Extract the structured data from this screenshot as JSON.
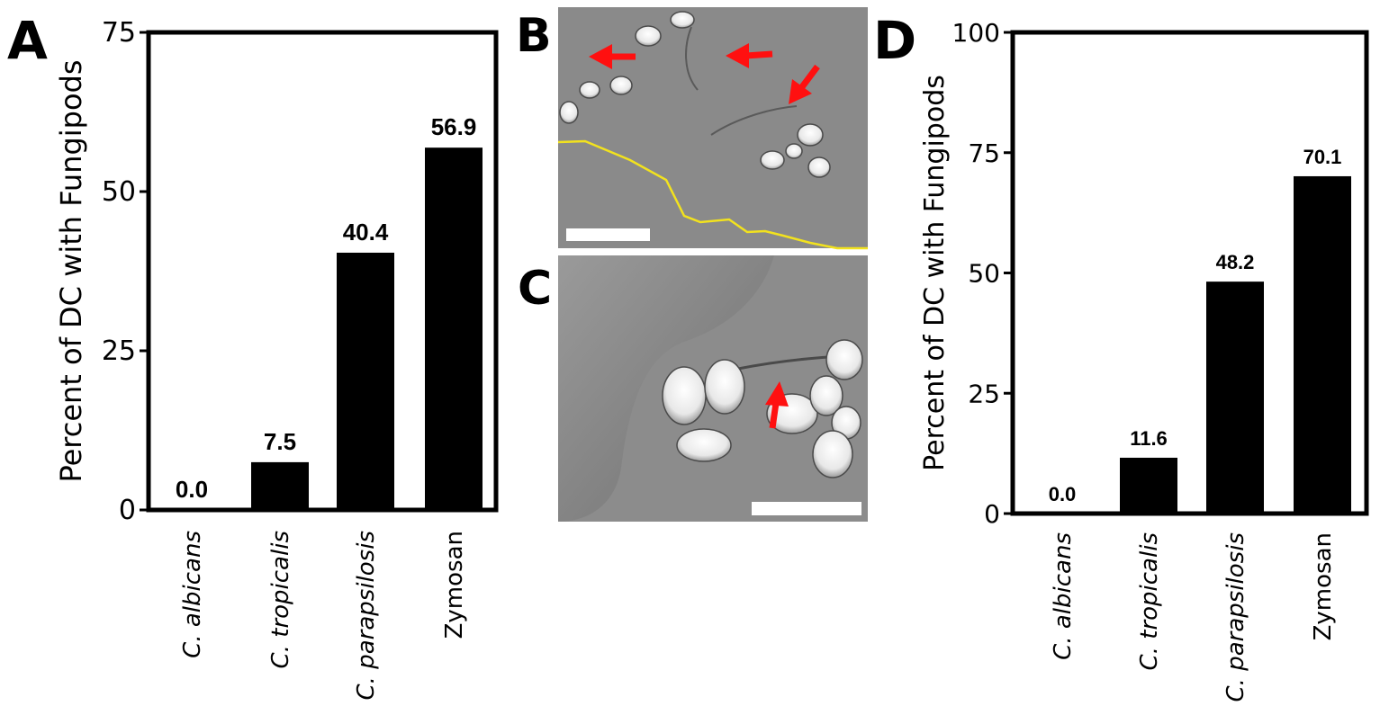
{
  "panels": {
    "a": "A",
    "b": "B",
    "c": "C",
    "d": "D"
  },
  "colors": {
    "bar": "#000000",
    "arrow": "#ff1010",
    "trace": "#f2e21e",
    "scale_bar": "#ffffff"
  },
  "chart_data": [
    {
      "panel": "A",
      "type": "bar",
      "categories": [
        "C. albicans",
        "C. tropicalis",
        "C. parapsilosis",
        "Zymosan"
      ],
      "values": [
        0.0,
        7.5,
        40.4,
        56.9
      ],
      "value_labels": [
        "0.0",
        "7.5",
        "40.4",
        "56.9"
      ],
      "ylabel": "Percent of DC with Fungipods",
      "ylim": [
        0,
        75
      ],
      "yticks": [
        0,
        25,
        50,
        75
      ],
      "grid": false,
      "legend": "none"
    },
    {
      "panel": "D",
      "type": "bar",
      "categories": [
        "C. albicans",
        "C. tropicalis",
        "C. parapsilosis",
        "Zymosan"
      ],
      "values": [
        0.0,
        11.6,
        48.2,
        70.1
      ],
      "value_labels": [
        "0.0",
        "11.6",
        "48.2",
        "70.1"
      ],
      "ylabel": "Percent of DC with Fungipods",
      "ylim": [
        0,
        100
      ],
      "yticks": [
        0,
        25,
        50,
        75,
        100
      ],
      "grid": false,
      "legend": "none"
    }
  ]
}
